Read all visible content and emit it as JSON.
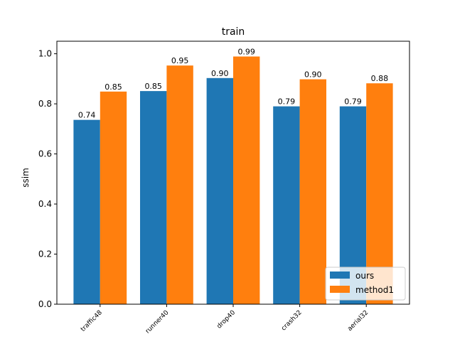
{
  "chart_data": {
    "type": "bar",
    "title": "train",
    "xlabel": "",
    "ylabel": "ssim",
    "categories": [
      "traffic48",
      "runner40",
      "drop40",
      "crash32",
      "aerial32"
    ],
    "series": [
      {
        "name": "ours",
        "values": [
          0.736,
          0.851,
          0.903,
          0.79,
          0.79
        ],
        "labels": [
          "0.74",
          "0.85",
          "0.90",
          "0.79",
          "0.79"
        ],
        "color": "#1f77b4"
      },
      {
        "name": "method1",
        "values": [
          0.849,
          0.953,
          0.989,
          0.898,
          0.882
        ],
        "labels": [
          "0.85",
          "0.95",
          "0.99",
          "0.90",
          "0.88"
        ],
        "color": "#ff7f0e"
      }
    ],
    "ylim": [
      0,
      1.05
    ],
    "yticks": [
      0.0,
      0.2,
      0.4,
      0.6,
      0.8,
      1.0
    ],
    "ytick_labels": [
      "0.0",
      "0.2",
      "0.4",
      "0.6",
      "0.8",
      "1.0"
    ],
    "xtick_rotation": 45,
    "grid": false,
    "legend_position": "bottom-right"
  }
}
